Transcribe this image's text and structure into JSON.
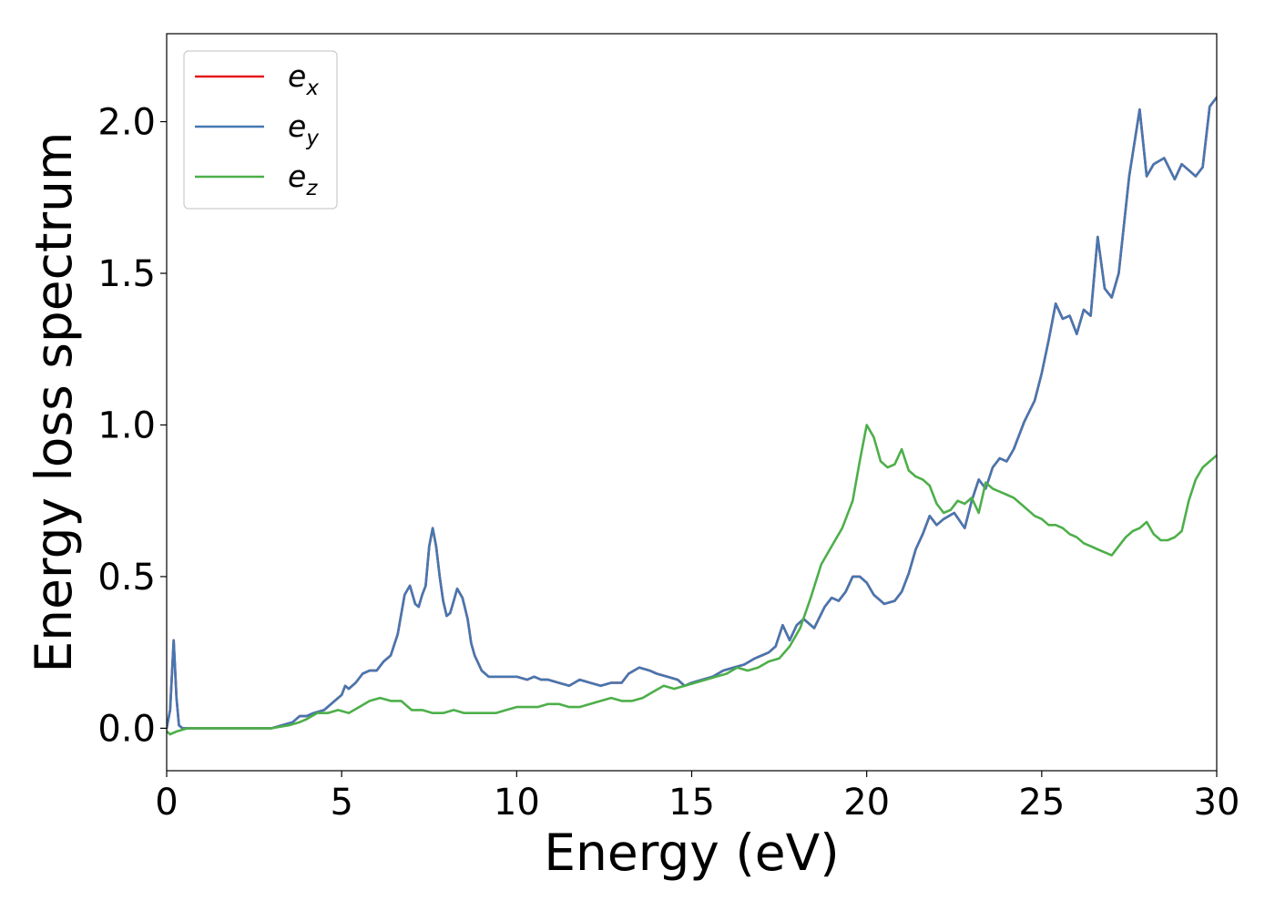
{
  "chart_data": {
    "type": "line",
    "xlabel": "Energy (eV)",
    "ylabel": "Energy loss spectrum",
    "xlim": [
      0,
      30
    ],
    "ylim": [
      -0.14,
      2.29
    ],
    "xticks": [
      0,
      5,
      10,
      15,
      20,
      25,
      30
    ],
    "xtick_labels": [
      "0",
      "5",
      "10",
      "15",
      "20",
      "25",
      "30"
    ],
    "yticks": [
      0.0,
      0.5,
      1.0,
      1.5,
      2.0
    ],
    "ytick_labels": [
      "0.0",
      "0.5",
      "1.0",
      "1.5",
      "2.0"
    ],
    "grid": false,
    "legend_position": "top-left",
    "series": [
      {
        "name": "e",
        "subscript": "x",
        "color": "#e41a1c",
        "x": [
          0.0,
          0.1,
          0.2,
          0.28,
          0.35,
          0.45,
          0.6,
          0.8,
          1.0,
          1.5,
          2.0,
          2.5,
          3.0,
          3.3,
          3.6,
          3.8,
          4.0,
          4.2,
          4.5,
          4.8,
          5.0,
          5.1,
          5.2,
          5.4,
          5.6,
          5.8,
          6.0,
          6.2,
          6.4,
          6.6,
          6.8,
          6.95,
          7.1,
          7.2,
          7.3,
          7.4,
          7.5,
          7.6,
          7.7,
          7.8,
          7.9,
          8.0,
          8.1,
          8.2,
          8.3,
          8.45,
          8.6,
          8.7,
          8.8,
          9.0,
          9.2,
          9.5,
          9.8,
          10.0,
          10.3,
          10.5,
          10.7,
          10.9,
          11.2,
          11.5,
          11.8,
          12.1,
          12.4,
          12.7,
          13.0,
          13.2,
          13.5,
          13.8,
          14.0,
          14.3,
          14.6,
          14.8,
          15.0,
          15.3,
          15.6,
          15.9,
          16.2,
          16.5,
          16.8,
          17.0,
          17.2,
          17.4,
          17.6,
          17.8,
          18.0,
          18.2,
          18.5,
          18.8,
          19.0,
          19.2,
          19.4,
          19.6,
          19.8,
          20.0,
          20.2,
          20.5,
          20.8,
          21.0,
          21.2,
          21.4,
          21.6,
          21.8,
          22.0,
          22.2,
          22.5,
          22.8,
          23.0,
          23.2,
          23.4,
          23.6,
          23.8,
          24.0,
          24.2,
          24.5,
          24.8,
          25.0,
          25.2,
          25.4,
          25.6,
          25.8,
          26.0,
          26.2,
          26.4,
          26.6,
          26.8,
          27.0,
          27.2,
          27.5,
          27.8,
          28.0,
          28.2,
          28.5,
          28.8,
          29.0,
          29.2,
          29.4,
          29.6,
          29.8,
          30.0
        ],
        "y": [
          0.0,
          0.06,
          0.29,
          0.1,
          0.01,
          0.0,
          0.0,
          0.0,
          0.0,
          0.0,
          0.0,
          0.0,
          0.0,
          0.01,
          0.02,
          0.04,
          0.04,
          0.05,
          0.06,
          0.09,
          0.11,
          0.14,
          0.13,
          0.15,
          0.18,
          0.19,
          0.19,
          0.22,
          0.24,
          0.31,
          0.44,
          0.47,
          0.41,
          0.4,
          0.44,
          0.47,
          0.6,
          0.66,
          0.6,
          0.5,
          0.42,
          0.37,
          0.38,
          0.42,
          0.46,
          0.43,
          0.36,
          0.28,
          0.24,
          0.19,
          0.17,
          0.17,
          0.17,
          0.17,
          0.16,
          0.17,
          0.16,
          0.16,
          0.15,
          0.14,
          0.16,
          0.15,
          0.14,
          0.15,
          0.15,
          0.18,
          0.2,
          0.19,
          0.18,
          0.17,
          0.16,
          0.14,
          0.15,
          0.16,
          0.17,
          0.19,
          0.2,
          0.21,
          0.23,
          0.24,
          0.25,
          0.27,
          0.34,
          0.29,
          0.34,
          0.36,
          0.33,
          0.4,
          0.43,
          0.42,
          0.45,
          0.5,
          0.5,
          0.48,
          0.44,
          0.41,
          0.42,
          0.45,
          0.51,
          0.59,
          0.64,
          0.7,
          0.67,
          0.69,
          0.71,
          0.66,
          0.75,
          0.82,
          0.79,
          0.86,
          0.89,
          0.88,
          0.92,
          1.01,
          1.08,
          1.17,
          1.28,
          1.4,
          1.35,
          1.36,
          1.3,
          1.38,
          1.36,
          1.62,
          1.45,
          1.42,
          1.5,
          1.82,
          2.04,
          1.82,
          1.86,
          1.88,
          1.81,
          1.86,
          1.84,
          1.82,
          1.85,
          2.05,
          2.08
        ]
      },
      {
        "name": "e",
        "subscript": "y",
        "color": "#4577b1",
        "x": [
          0.0,
          0.1,
          0.2,
          0.28,
          0.35,
          0.45,
          0.6,
          0.8,
          1.0,
          1.5,
          2.0,
          2.5,
          3.0,
          3.3,
          3.6,
          3.8,
          4.0,
          4.2,
          4.5,
          4.8,
          5.0,
          5.1,
          5.2,
          5.4,
          5.6,
          5.8,
          6.0,
          6.2,
          6.4,
          6.6,
          6.8,
          6.95,
          7.1,
          7.2,
          7.3,
          7.4,
          7.5,
          7.6,
          7.7,
          7.8,
          7.9,
          8.0,
          8.1,
          8.2,
          8.3,
          8.45,
          8.6,
          8.7,
          8.8,
          9.0,
          9.2,
          9.5,
          9.8,
          10.0,
          10.3,
          10.5,
          10.7,
          10.9,
          11.2,
          11.5,
          11.8,
          12.1,
          12.4,
          12.7,
          13.0,
          13.2,
          13.5,
          13.8,
          14.0,
          14.3,
          14.6,
          14.8,
          15.0,
          15.3,
          15.6,
          15.9,
          16.2,
          16.5,
          16.8,
          17.0,
          17.2,
          17.4,
          17.6,
          17.8,
          18.0,
          18.2,
          18.5,
          18.8,
          19.0,
          19.2,
          19.4,
          19.6,
          19.8,
          20.0,
          20.2,
          20.5,
          20.8,
          21.0,
          21.2,
          21.4,
          21.6,
          21.8,
          22.0,
          22.2,
          22.5,
          22.8,
          23.0,
          23.2,
          23.4,
          23.6,
          23.8,
          24.0,
          24.2,
          24.5,
          24.8,
          25.0,
          25.2,
          25.4,
          25.6,
          25.8,
          26.0,
          26.2,
          26.4,
          26.6,
          26.8,
          27.0,
          27.2,
          27.5,
          27.8,
          28.0,
          28.2,
          28.5,
          28.8,
          29.0,
          29.2,
          29.4,
          29.6,
          29.8,
          30.0
        ],
        "y": [
          0.0,
          0.06,
          0.29,
          0.1,
          0.01,
          0.0,
          0.0,
          0.0,
          0.0,
          0.0,
          0.0,
          0.0,
          0.0,
          0.01,
          0.02,
          0.04,
          0.04,
          0.05,
          0.06,
          0.09,
          0.11,
          0.14,
          0.13,
          0.15,
          0.18,
          0.19,
          0.19,
          0.22,
          0.24,
          0.31,
          0.44,
          0.47,
          0.41,
          0.4,
          0.44,
          0.47,
          0.6,
          0.66,
          0.6,
          0.5,
          0.42,
          0.37,
          0.38,
          0.42,
          0.46,
          0.43,
          0.36,
          0.28,
          0.24,
          0.19,
          0.17,
          0.17,
          0.17,
          0.17,
          0.16,
          0.17,
          0.16,
          0.16,
          0.15,
          0.14,
          0.16,
          0.15,
          0.14,
          0.15,
          0.15,
          0.18,
          0.2,
          0.19,
          0.18,
          0.17,
          0.16,
          0.14,
          0.15,
          0.16,
          0.17,
          0.19,
          0.2,
          0.21,
          0.23,
          0.24,
          0.25,
          0.27,
          0.34,
          0.29,
          0.34,
          0.36,
          0.33,
          0.4,
          0.43,
          0.42,
          0.45,
          0.5,
          0.5,
          0.48,
          0.44,
          0.41,
          0.42,
          0.45,
          0.51,
          0.59,
          0.64,
          0.7,
          0.67,
          0.69,
          0.71,
          0.66,
          0.75,
          0.82,
          0.79,
          0.86,
          0.89,
          0.88,
          0.92,
          1.01,
          1.08,
          1.17,
          1.28,
          1.4,
          1.35,
          1.36,
          1.3,
          1.38,
          1.36,
          1.62,
          1.45,
          1.42,
          1.5,
          1.82,
          2.04,
          1.82,
          1.86,
          1.88,
          1.81,
          1.86,
          1.84,
          1.82,
          1.85,
          2.05,
          2.08
        ]
      },
      {
        "name": "e",
        "subscript": "z",
        "color": "#4daf4a",
        "x": [
          0.0,
          0.1,
          0.3,
          0.6,
          1.0,
          1.5,
          2.0,
          2.5,
          3.0,
          3.5,
          3.8,
          4.0,
          4.3,
          4.6,
          4.9,
          5.2,
          5.5,
          5.8,
          6.1,
          6.4,
          6.7,
          7.0,
          7.3,
          7.6,
          7.9,
          8.2,
          8.5,
          8.8,
          9.1,
          9.4,
          9.7,
          10.0,
          10.3,
          10.6,
          10.9,
          11.2,
          11.5,
          11.8,
          12.1,
          12.4,
          12.7,
          13.0,
          13.3,
          13.6,
          13.9,
          14.2,
          14.5,
          14.8,
          15.1,
          15.4,
          15.7,
          16.0,
          16.3,
          16.6,
          16.9,
          17.2,
          17.5,
          17.8,
          18.1,
          18.4,
          18.7,
          19.0,
          19.3,
          19.6,
          19.8,
          20.0,
          20.2,
          20.4,
          20.6,
          20.8,
          21.0,
          21.2,
          21.4,
          21.6,
          21.8,
          22.0,
          22.2,
          22.4,
          22.6,
          22.8,
          23.0,
          23.2,
          23.4,
          23.6,
          23.8,
          24.0,
          24.2,
          24.4,
          24.6,
          24.8,
          25.0,
          25.2,
          25.4,
          25.6,
          25.8,
          26.0,
          26.2,
          26.4,
          26.6,
          26.8,
          27.0,
          27.2,
          27.4,
          27.6,
          27.8,
          28.0,
          28.2,
          28.4,
          28.6,
          28.8,
          29.0,
          29.2,
          29.4,
          29.6,
          29.8,
          30.0
        ],
        "y": [
          -0.01,
          -0.02,
          -0.01,
          0.0,
          0.0,
          0.0,
          0.0,
          0.0,
          0.0,
          0.01,
          0.02,
          0.03,
          0.05,
          0.05,
          0.06,
          0.05,
          0.07,
          0.09,
          0.1,
          0.09,
          0.09,
          0.06,
          0.06,
          0.05,
          0.05,
          0.06,
          0.05,
          0.05,
          0.05,
          0.05,
          0.06,
          0.07,
          0.07,
          0.07,
          0.08,
          0.08,
          0.07,
          0.07,
          0.08,
          0.09,
          0.1,
          0.09,
          0.09,
          0.1,
          0.12,
          0.14,
          0.13,
          0.14,
          0.15,
          0.16,
          0.17,
          0.18,
          0.2,
          0.19,
          0.2,
          0.22,
          0.23,
          0.27,
          0.33,
          0.43,
          0.54,
          0.6,
          0.66,
          0.75,
          0.88,
          1.0,
          0.96,
          0.88,
          0.86,
          0.87,
          0.92,
          0.85,
          0.83,
          0.82,
          0.8,
          0.74,
          0.71,
          0.72,
          0.75,
          0.74,
          0.76,
          0.71,
          0.81,
          0.79,
          0.78,
          0.77,
          0.76,
          0.74,
          0.72,
          0.7,
          0.69,
          0.67,
          0.67,
          0.66,
          0.64,
          0.63,
          0.61,
          0.6,
          0.59,
          0.58,
          0.57,
          0.6,
          0.63,
          0.65,
          0.66,
          0.68,
          0.64,
          0.62,
          0.62,
          0.63,
          0.65,
          0.75,
          0.82,
          0.86,
          0.88,
          0.9
        ]
      }
    ]
  }
}
